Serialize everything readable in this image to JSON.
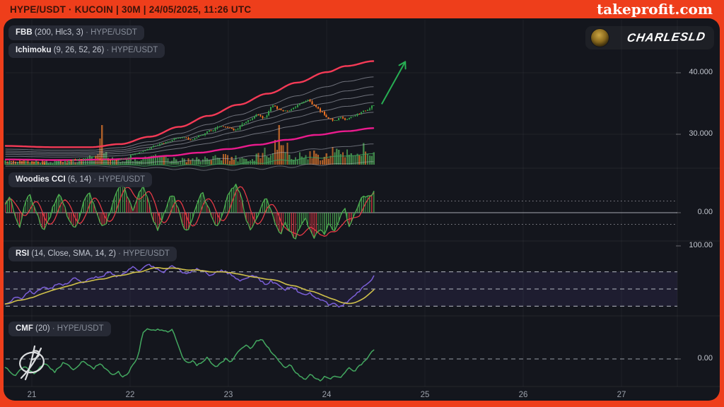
{
  "header": {
    "title": "HYPE/USDT · KUCOIN | 30M | 24/05/2025, 11:26 UTC",
    "brand": "takeprofit.com"
  },
  "user": {
    "name": "CHARLESLD"
  },
  "indicator_pills": [
    {
      "id": "fbb",
      "name": "FBB",
      "params": "(200, Hlc3, 3)",
      "separator": "·",
      "symbol": "HYPE/USDT"
    },
    {
      "id": "ichimoku",
      "name": "Ichimoku",
      "params": "(9, 26, 52, 26)",
      "separator": "·",
      "symbol": "HYPE/USDT"
    },
    {
      "id": "cci",
      "name": "Woodies CCI",
      "params": "(6, 14)",
      "separator": "·",
      "symbol": "HYPE/USDT"
    },
    {
      "id": "rsi",
      "name": "RSI",
      "params": "(14, Close, SMA, 14, 2)",
      "separator": "·",
      "symbol": "HYPE/USDT"
    },
    {
      "id": "cmf",
      "name": "CMF",
      "params": "(20)",
      "separator": "·",
      "symbol": "HYPE/USDT"
    }
  ],
  "price_axis": {
    "labels": [
      "40.000",
      "30.000",
      "0.00",
      "100.00",
      "0.00"
    ]
  },
  "time_axis": {
    "labels": [
      "21",
      "22",
      "23",
      "24",
      "25",
      "26",
      "27"
    ]
  },
  "colors": {
    "frame": "#ee3e1b",
    "panel_bg": "#14161d",
    "candle_up": "#32a148",
    "candle_down": "#ef7222",
    "volume_up": "rgba(74,156,84,0.8)",
    "volume_down": "rgba(196,106,42,0.85)",
    "band_upper": "#f43a56",
    "band_basis": "#ea1b8d",
    "band_fib": "#b9bec9",
    "band_lower_green": "#3f9e5a",
    "cci_line": "#4caf50",
    "cci_signal": "#e53945",
    "rsi_line": "#7b5fd8",
    "rsi_sma": "#cfc04a",
    "rsi_zone_fill": "rgba(126,98,215,0.10)",
    "cmf_line": "#43a860",
    "arrow": "#27ae53"
  },
  "chart_data": [
    {
      "panel": "price",
      "type": "candlestick",
      "symbol": "HYPE/USDT",
      "interval": "30M",
      "x_unit": "day_of_may_2025",
      "x_start": 20.73,
      "x_end": 24.48,
      "bars": 180,
      "ylim": [
        22,
        43
      ],
      "y_ticks": [
        30.0,
        40.0
      ],
      "close_path": [
        [
          20.73,
          25.6
        ],
        [
          21.0,
          25.4
        ],
        [
          21.15,
          25.2
        ],
        [
          21.3,
          25.5
        ],
        [
          21.5,
          26.0
        ],
        [
          21.62,
          26.4
        ],
        [
          21.72,
          25.7
        ],
        [
          21.85,
          25.8
        ],
        [
          21.95,
          26.1
        ],
        [
          22.05,
          26.8
        ],
        [
          22.15,
          27.4
        ],
        [
          22.25,
          28.1
        ],
        [
          22.35,
          28.6
        ],
        [
          22.45,
          29.2
        ],
        [
          22.55,
          29.5
        ],
        [
          22.63,
          29.1
        ],
        [
          22.72,
          29.9
        ],
        [
          22.82,
          30.6
        ],
        [
          22.92,
          31.3
        ],
        [
          23.0,
          31.1
        ],
        [
          23.07,
          30.7
        ],
        [
          23.15,
          31.7
        ],
        [
          23.22,
          32.4
        ],
        [
          23.3,
          33.2
        ],
        [
          23.36,
          32.6
        ],
        [
          23.45,
          34.6
        ],
        [
          23.52,
          34.0
        ],
        [
          23.6,
          33.7
        ],
        [
          23.66,
          34.3
        ],
        [
          23.72,
          34.9
        ],
        [
          23.81,
          35.6
        ],
        [
          23.88,
          34.6
        ],
        [
          23.95,
          33.6
        ],
        [
          24.02,
          32.6
        ],
        [
          24.08,
          32.2
        ],
        [
          24.15,
          32.7
        ],
        [
          24.2,
          32.4
        ],
        [
          24.27,
          32.9
        ],
        [
          24.33,
          33.4
        ],
        [
          24.4,
          33.9
        ],
        [
          24.48,
          34.8
        ]
      ],
      "volume_profile": [
        [
          20.73,
          5
        ],
        [
          21.1,
          4
        ],
        [
          21.35,
          5
        ],
        [
          21.55,
          8
        ],
        [
          21.68,
          10
        ],
        [
          21.71,
          46
        ],
        [
          21.76,
          9
        ],
        [
          21.9,
          6
        ],
        [
          22.05,
          8
        ],
        [
          22.2,
          10
        ],
        [
          22.35,
          9
        ],
        [
          22.5,
          7
        ],
        [
          22.65,
          7
        ],
        [
          22.8,
          9
        ],
        [
          22.95,
          11
        ],
        [
          23.1,
          8
        ],
        [
          23.25,
          10
        ],
        [
          23.38,
          16
        ],
        [
          23.46,
          24
        ],
        [
          23.52,
          54
        ],
        [
          23.56,
          28
        ],
        [
          23.65,
          13
        ],
        [
          23.75,
          11
        ],
        [
          23.85,
          15
        ],
        [
          23.95,
          13
        ],
        [
          24.05,
          20
        ],
        [
          24.1,
          28
        ],
        [
          24.15,
          18
        ],
        [
          24.22,
          13
        ],
        [
          24.3,
          17
        ],
        [
          24.36,
          24
        ],
        [
          24.42,
          15
        ],
        [
          24.48,
          19
        ]
      ],
      "fbb": {
        "upper": [
          [
            20.73,
            28.1
          ],
          [
            21.2,
            27.9
          ],
          [
            21.6,
            27.9
          ],
          [
            21.9,
            28.4
          ],
          [
            22.2,
            29.6
          ],
          [
            22.5,
            31.2
          ],
          [
            22.8,
            33.0
          ],
          [
            23.1,
            34.8
          ],
          [
            23.4,
            36.6
          ],
          [
            23.7,
            38.4
          ],
          [
            24.0,
            40.1
          ],
          [
            24.2,
            41.1
          ],
          [
            24.48,
            41.9
          ]
        ],
        "basis": [
          [
            20.73,
            25.9
          ],
          [
            21.3,
            25.8
          ],
          [
            21.8,
            25.9
          ],
          [
            22.1,
            26.1
          ],
          [
            22.4,
            26.5
          ],
          [
            22.7,
            27.0
          ],
          [
            23.0,
            27.6
          ],
          [
            23.3,
            28.3
          ],
          [
            23.6,
            29.1
          ],
          [
            23.9,
            29.9
          ],
          [
            24.2,
            30.5
          ],
          [
            24.48,
            31.0
          ]
        ],
        "fib_fractions_upper": [
          0.236,
          0.382,
          0.5,
          0.618,
          0.764
        ],
        "fib_fractions_lower": [
          0.236,
          0.382,
          0.5
        ]
      },
      "arrow": {
        "from": [
          24.56,
          34.9
        ],
        "to": [
          24.8,
          41.8
        ]
      }
    },
    {
      "panel": "cci",
      "type": "histogram+lines",
      "name": "Woodies CCI (6, 14)",
      "levels": [
        100,
        0,
        -100
      ],
      "ylim": [
        -260,
        260
      ],
      "values": [
        60,
        140,
        -40,
        -120,
        80,
        160,
        40,
        -80,
        -150,
        -60,
        90,
        170,
        60,
        -70,
        -140,
        -50,
        100,
        180,
        80,
        -60,
        -130,
        -40,
        110,
        190,
        240,
        130,
        20,
        150,
        230,
        120,
        -50,
        -140,
        -60,
        80,
        160,
        60,
        -90,
        -170,
        -70,
        90,
        180,
        90,
        -50,
        -130,
        -40,
        120,
        200,
        250,
        140,
        -60,
        -150,
        -70,
        60,
        140,
        40,
        -100,
        -180,
        -90,
        -160,
        -230,
        -120,
        -40,
        -140,
        -220,
        -130,
        -180,
        -90,
        -170,
        -60,
        40,
        -110,
        -30,
        80,
        150,
        120,
        170
      ]
    },
    {
      "panel": "rsi",
      "type": "line",
      "name": "RSI (14, Close, SMA, 14, 2)",
      "levels": [
        70,
        50,
        30
      ],
      "ylim": [
        0,
        100
      ],
      "values": [
        34,
        36,
        40,
        38,
        43,
        47,
        45,
        49,
        52,
        50,
        54,
        57,
        55,
        59,
        62,
        60,
        57,
        61,
        64,
        62,
        66,
        70,
        67,
        64,
        68,
        72,
        75,
        71,
        74,
        78,
        76,
        72,
        69,
        73,
        76,
        74,
        70,
        67,
        71,
        74,
        72,
        68,
        65,
        69,
        72,
        70,
        66,
        62,
        59,
        63,
        66,
        64,
        60,
        56,
        59,
        56,
        52,
        49,
        53,
        50,
        46,
        43,
        46,
        41,
        38,
        35,
        31,
        34,
        30,
        33,
        37,
        42,
        47,
        53,
        58,
        64
      ],
      "sma_window": 14
    },
    {
      "panel": "cmf",
      "type": "line",
      "name": "CMF (20)",
      "levels": [
        0
      ],
      "ylim": [
        -0.45,
        0.5
      ],
      "values": [
        -0.1,
        -0.16,
        -0.22,
        -0.14,
        -0.08,
        -0.15,
        -0.2,
        -0.12,
        -0.05,
        -0.11,
        -0.17,
        -0.1,
        -0.04,
        -0.09,
        -0.14,
        -0.07,
        -0.02,
        -0.08,
        -0.13,
        -0.06,
        -0.1,
        -0.16,
        -0.22,
        -0.16,
        -0.24,
        -0.18,
        -0.08,
        0.04,
        0.34,
        0.38,
        0.36,
        0.39,
        0.37,
        0.35,
        0.38,
        0.2,
        0.02,
        -0.06,
        -0.02,
        -0.08,
        -0.04,
        0.02,
        -0.06,
        -0.11,
        -0.05,
        0.01,
        -0.04,
        0.06,
        0.14,
        0.18,
        0.12,
        0.22,
        0.26,
        0.19,
        0.1,
        0.03,
        -0.05,
        -0.12,
        -0.08,
        -0.16,
        -0.22,
        -0.26,
        -0.2,
        -0.24,
        -0.28,
        -0.22,
        -0.26,
        -0.21,
        -0.25,
        -0.18,
        -0.12,
        -0.16,
        -0.09,
        -0.04,
        0.04,
        0.12
      ]
    }
  ]
}
